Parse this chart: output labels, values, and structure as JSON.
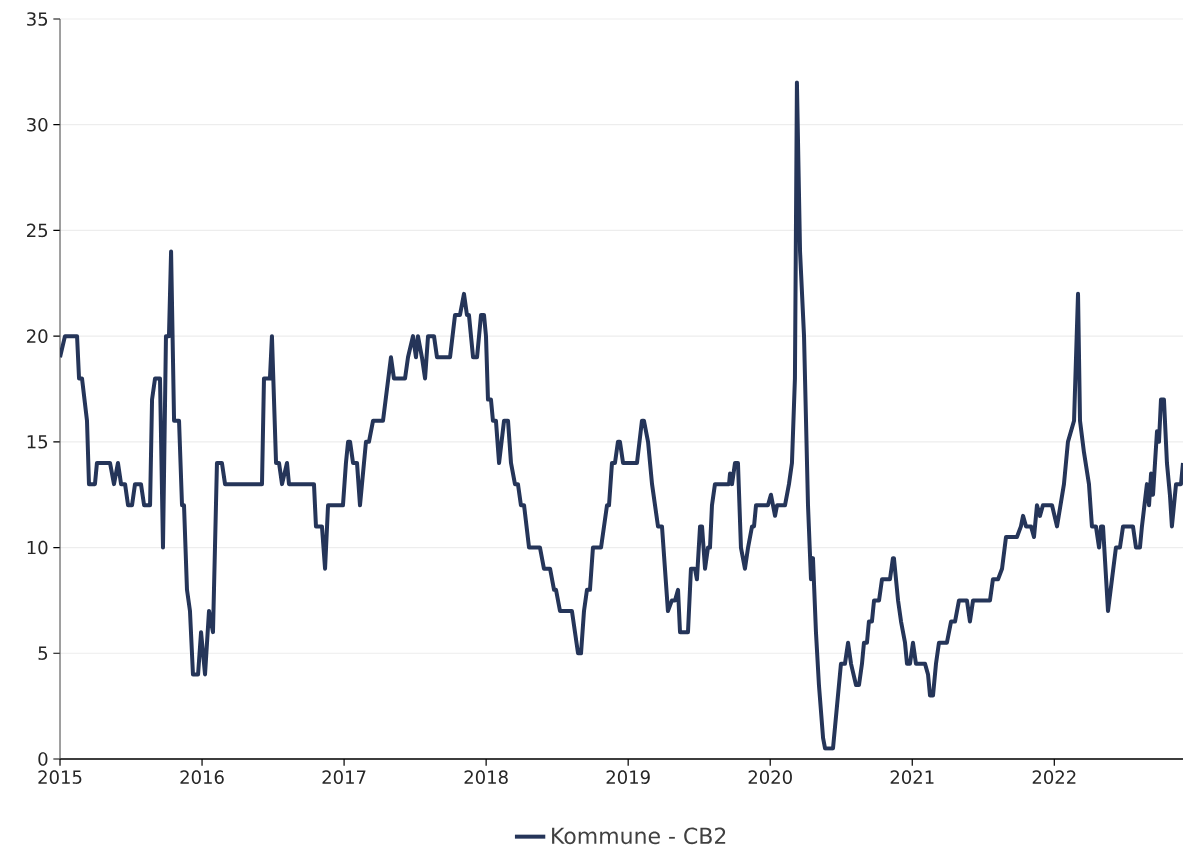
{
  "chart_data": {
    "type": "line",
    "xlim": [
      2015,
      2022.906
    ],
    "xticks": [
      2015,
      2016,
      2017,
      2018,
      2019,
      2020,
      2021,
      2022
    ],
    "ylim": [
      0,
      35
    ],
    "yticks": [
      0,
      5,
      10,
      15,
      20,
      25,
      30,
      35
    ],
    "grid": "y",
    "legend": "bottom",
    "marker": "none",
    "line_style": "solid",
    "series": [
      {
        "name": "Kommune - CB2",
        "color": "#253559",
        "x": [
          2015.0,
          2015.035,
          2015.12,
          2015.134,
          2015.155,
          2015.19,
          2015.204,
          2015.246,
          2015.26,
          2015.352,
          2015.38,
          2015.408,
          2015.43,
          2015.458,
          2015.479,
          2015.507,
          2015.528,
          2015.57,
          2015.592,
          2015.634,
          2015.648,
          2015.669,
          2015.704,
          2015.725,
          2015.746,
          2015.767,
          2015.782,
          2015.803,
          2015.838,
          2015.859,
          2015.873,
          2015.894,
          2015.915,
          2015.936,
          2015.972,
          2015.993,
          2016.021,
          2016.049,
          2016.077,
          2016.105,
          2016.14,
          2016.162,
          2016.422,
          2016.436,
          2016.478,
          2016.492,
          2016.521,
          2016.542,
          2016.563,
          2016.598,
          2016.612,
          2016.788,
          2016.802,
          2016.844,
          2016.866,
          2016.887,
          2016.992,
          2017.013,
          2017.028,
          2017.042,
          2017.063,
          2017.091,
          2017.112,
          2017.154,
          2017.175,
          2017.204,
          2017.274,
          2017.33,
          2017.351,
          2017.429,
          2017.45,
          2017.485,
          2017.506,
          2017.52,
          2017.548,
          2017.57,
          2017.591,
          2017.633,
          2017.654,
          2017.746,
          2017.781,
          2017.816,
          2017.844,
          2017.865,
          2017.879,
          2017.908,
          2017.936,
          2017.964,
          2017.985,
          2017.999,
          2018.013,
          2018.034,
          2018.048,
          2018.069,
          2018.091,
          2018.126,
          2018.154,
          2018.175,
          2018.203,
          2018.224,
          2018.245,
          2018.267,
          2018.302,
          2018.379,
          2018.407,
          2018.45,
          2018.478,
          2018.492,
          2018.52,
          2018.604,
          2018.647,
          2018.668,
          2018.689,
          2018.71,
          2018.731,
          2018.752,
          2018.809,
          2018.851,
          2018.865,
          2018.886,
          2018.907,
          2018.928,
          2018.942,
          2018.964,
          2019.062,
          2019.097,
          2019.111,
          2019.14,
          2019.168,
          2019.21,
          2019.238,
          2019.28,
          2019.308,
          2019.33,
          2019.351,
          2019.365,
          2019.421,
          2019.442,
          2019.47,
          2019.484,
          2019.506,
          2019.52,
          2019.541,
          2019.562,
          2019.576,
          2019.59,
          2019.611,
          2019.71,
          2019.717,
          2019.731,
          2019.752,
          2019.773,
          2019.794,
          2019.822,
          2019.844,
          2019.872,
          2019.886,
          2019.9,
          2019.984,
          2020.005,
          2020.034,
          2020.048,
          2020.104,
          2020.132,
          2020.153,
          2020.174,
          2020.188,
          2020.21,
          2020.238,
          2020.266,
          2020.287,
          2020.301,
          2020.322,
          2020.343,
          2020.372,
          2020.386,
          2020.442,
          2020.463,
          2020.484,
          2020.498,
          2020.526,
          2020.548,
          2020.569,
          2020.604,
          2020.625,
          2020.646,
          2020.66,
          2020.681,
          2020.695,
          2020.716,
          2020.731,
          2020.766,
          2020.787,
          2020.843,
          2020.864,
          2020.871,
          2020.9,
          2020.921,
          2020.949,
          2020.963,
          2020.984,
          2021.005,
          2021.026,
          2021.09,
          2021.111,
          2021.125,
          2021.146,
          2021.167,
          2021.188,
          2021.244,
          2021.273,
          2021.301,
          2021.329,
          2021.385,
          2021.406,
          2021.428,
          2021.547,
          2021.568,
          2021.604,
          2021.632,
          2021.66,
          2021.737,
          2021.765,
          2021.78,
          2021.801,
          2021.836,
          2021.857,
          2021.878,
          2021.899,
          2021.92,
          2021.984,
          2022.019,
          2022.068,
          2022.096,
          2022.139,
          2022.167,
          2022.181,
          2022.209,
          2022.244,
          2022.265,
          2022.293,
          2022.315,
          2022.329,
          2022.343,
          2022.378,
          2022.406,
          2022.434,
          2022.462,
          2022.484,
          2022.554,
          2022.575,
          2022.603,
          2022.617,
          2022.652,
          2022.667,
          2022.681,
          2022.695,
          2022.709,
          2022.723,
          2022.737,
          2022.751,
          2022.772,
          2022.793,
          2022.814,
          2022.828,
          2022.857,
          2022.892,
          2022.906
        ],
        "values": [
          19,
          20,
          20,
          18,
          18,
          16,
          13,
          13,
          14,
          14,
          13,
          14,
          13,
          13,
          12,
          12,
          13,
          13,
          12,
          12,
          17,
          18,
          18,
          10,
          20,
          20,
          24,
          16,
          16,
          12,
          12,
          8,
          7,
          4,
          4,
          6,
          4,
          7,
          6,
          14,
          14,
          13,
          13,
          18,
          18,
          20,
          14,
          14,
          13,
          14,
          13,
          13,
          11,
          11,
          9,
          12,
          12,
          14,
          15,
          15,
          14,
          14,
          12,
          15,
          15,
          16,
          16,
          19,
          18,
          18,
          19,
          20,
          19,
          20,
          19,
          18,
          20,
          20,
          19,
          19,
          21,
          21,
          22,
          21,
          21,
          19,
          19,
          21,
          21,
          20,
          17,
          17,
          16,
          16,
          14,
          16,
          16,
          14,
          13,
          13,
          12,
          12,
          10,
          10,
          9,
          9,
          8,
          8,
          7,
          7,
          5,
          5,
          7,
          8,
          8,
          10,
          10,
          12,
          12,
          14,
          14,
          15,
          15,
          14,
          14,
          16,
          16,
          15,
          13,
          11,
          11,
          7,
          7.5,
          7.5,
          8,
          6,
          6,
          9,
          9,
          8.5,
          11,
          11,
          9,
          10,
          10,
          12,
          13,
          13,
          13.5,
          13,
          14,
          14,
          10,
          9,
          10,
          11,
          11,
          12,
          12,
          12.5,
          11.5,
          12,
          12,
          13,
          14,
          18,
          32,
          24,
          20,
          12,
          8.5,
          9.5,
          6,
          3.5,
          1,
          0.5,
          0.5,
          2,
          3.5,
          4.5,
          4.5,
          5.5,
          4.5,
          3.5,
          3.5,
          4.5,
          5.5,
          5.5,
          6.5,
          6.5,
          7.5,
          7.5,
          8.5,
          8.5,
          9.5,
          9.5,
          7.5,
          6.5,
          5.5,
          4.5,
          4.5,
          5.5,
          4.5,
          4.5,
          4,
          3,
          3,
          4.5,
          5.5,
          5.5,
          6.5,
          6.5,
          7.5,
          7.5,
          6.5,
          7.5,
          7.5,
          8.5,
          8.5,
          9,
          10.5,
          10.5,
          11,
          11.5,
          11,
          11,
          10.5,
          12,
          11.5,
          12,
          12,
          11,
          13,
          15,
          16,
          22,
          16,
          14.5,
          13,
          11,
          11,
          10,
          11,
          11,
          7,
          8.5,
          10,
          10,
          11,
          11,
          10,
          10,
          11,
          13,
          12,
          13.5,
          12.5,
          14,
          15.5,
          15,
          17,
          17,
          14,
          12.5,
          11,
          13,
          13,
          14
        ]
      }
    ]
  }
}
